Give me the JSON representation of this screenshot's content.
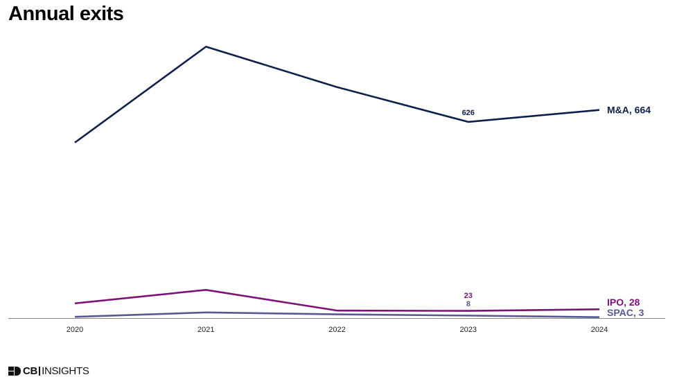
{
  "page": {
    "title": "Annual exits",
    "logo_text_bold": "CB",
    "logo_text_light": "INSIGHTS"
  },
  "chart_data": {
    "type": "line",
    "title": "Annual exits",
    "xlabel": "",
    "ylabel": "",
    "x": [
      "2020",
      "2021",
      "2022",
      "2023",
      "2024"
    ],
    "ylim": [
      0,
      900
    ],
    "grid": false,
    "series": [
      {
        "name": "M&A",
        "color": "#0d1f4a",
        "values": [
          560,
          866,
          737,
          626,
          664
        ],
        "point_labels": [
          null,
          null,
          null,
          "626",
          null
        ],
        "end_label": "M&A, 664"
      },
      {
        "name": "IPO",
        "color": "#7b1275",
        "values": [
          47,
          90,
          24,
          23,
          28
        ],
        "point_labels": [
          null,
          null,
          null,
          "23",
          null
        ],
        "end_label": "IPO, 28"
      },
      {
        "name": "SPAC",
        "color": "#585892",
        "values": [
          4,
          18,
          12,
          8,
          3
        ],
        "point_labels": [
          null,
          null,
          null,
          "8",
          null
        ],
        "end_label": "SPAC, 3"
      }
    ]
  }
}
